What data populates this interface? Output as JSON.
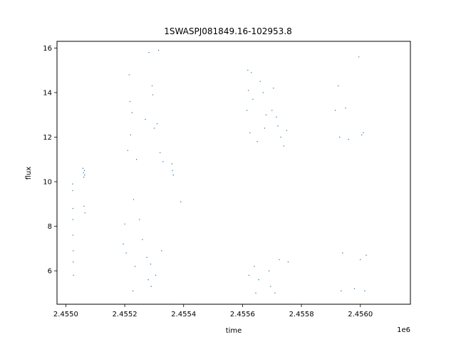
{
  "chart_data": {
    "type": "scatter",
    "title": "1SWASPJ081849.16-102953.8",
    "xlabel": "time",
    "ylabel": "flux",
    "x_offset_label": "1e6",
    "xlim": [
      2454870,
      2456070
    ],
    "ylim": [
      4.5,
      16.3
    ],
    "x_ticks": [
      {
        "value": 2454900,
        "label": "2.4550"
      },
      {
        "value": 2455100,
        "label": "2.4552"
      },
      {
        "value": 2455300,
        "label": "2.4554"
      },
      {
        "value": 2455500,
        "label": "2.4556"
      },
      {
        "value": 2455700,
        "label": "2.4558"
      },
      {
        "value": 2455900,
        "label": "2.4560"
      }
    ],
    "y_ticks": [
      {
        "value": 6,
        "label": "6"
      },
      {
        "value": 8,
        "label": "8"
      },
      {
        "value": 10,
        "label": "10"
      },
      {
        "value": 12,
        "label": "12"
      },
      {
        "value": 14,
        "label": "14"
      },
      {
        "value": 16,
        "label": "16"
      }
    ],
    "grid": false,
    "marker_color": "#1f77b4",
    "series": [
      {
        "points": [
          [
            2454923,
            9.9
          ],
          [
            2454923,
            9.6
          ],
          [
            2454924,
            8.8
          ],
          [
            2454924,
            8.3
          ],
          [
            2454925,
            6.9
          ],
          [
            2454925,
            6.4
          ],
          [
            2454926,
            5.8
          ],
          [
            2454924,
            7.6
          ],
          [
            2454958,
            10.6
          ],
          [
            2454960,
            10.4
          ],
          [
            2454961,
            10.2
          ],
          [
            2454963,
            10.5
          ],
          [
            2454962,
            8.9
          ],
          [
            2454965,
            8.6
          ],
          [
            2454964,
            10.3
          ],
          [
            2455095,
            7.2
          ],
          [
            2455100,
            8.1
          ],
          [
            2455105,
            6.8
          ],
          [
            2455110,
            11.4
          ],
          [
            2455115,
            14.8
          ],
          [
            2455118,
            13.6
          ],
          [
            2455120,
            12.1
          ],
          [
            2455125,
            13.1
          ],
          [
            2455128,
            5.1
          ],
          [
            2455130,
            9.2
          ],
          [
            2455135,
            6.2
          ],
          [
            2455140,
            11.0
          ],
          [
            2455150,
            8.3
          ],
          [
            2455160,
            7.4
          ],
          [
            2455170,
            12.8
          ],
          [
            2455175,
            6.6
          ],
          [
            2455180,
            5.6
          ],
          [
            2455182,
            15.8
          ],
          [
            2455188,
            6.3
          ],
          [
            2455190,
            5.3
          ],
          [
            2455193,
            14.3
          ],
          [
            2455195,
            13.9
          ],
          [
            2455200,
            12.4
          ],
          [
            2455205,
            5.8
          ],
          [
            2455210,
            12.6
          ],
          [
            2455215,
            15.9
          ],
          [
            2455220,
            11.3
          ],
          [
            2455225,
            6.9
          ],
          [
            2455230,
            10.9
          ],
          [
            2455260,
            10.8
          ],
          [
            2455262,
            10.5
          ],
          [
            2455265,
            10.3
          ],
          [
            2455290,
            9.1
          ],
          [
            2455515,
            13.2
          ],
          [
            2455518,
            15.0
          ],
          [
            2455520,
            14.1
          ],
          [
            2455522,
            5.8
          ],
          [
            2455525,
            12.2
          ],
          [
            2455530,
            14.9
          ],
          [
            2455535,
            13.7
          ],
          [
            2455540,
            6.2
          ],
          [
            2455545,
            5.0
          ],
          [
            2455550,
            11.8
          ],
          [
            2455555,
            5.6
          ],
          [
            2455560,
            14.5
          ],
          [
            2455570,
            14.0
          ],
          [
            2455575,
            12.4
          ],
          [
            2455580,
            13.0
          ],
          [
            2455590,
            6.0
          ],
          [
            2455595,
            5.3
          ],
          [
            2455600,
            13.2
          ],
          [
            2455605,
            14.2
          ],
          [
            2455610,
            5.0
          ],
          [
            2455615,
            12.9
          ],
          [
            2455620,
            12.5
          ],
          [
            2455625,
            6.5
          ],
          [
            2455630,
            12.0
          ],
          [
            2455640,
            11.6
          ],
          [
            2455650,
            12.3
          ],
          [
            2455655,
            6.4
          ],
          [
            2455815,
            13.2
          ],
          [
            2455825,
            14.3
          ],
          [
            2455830,
            12.0
          ],
          [
            2455835,
            5.1
          ],
          [
            2455840,
            6.8
          ],
          [
            2455850,
            13.3
          ],
          [
            2455860,
            11.9
          ],
          [
            2455880,
            5.2
          ],
          [
            2455895,
            15.6
          ],
          [
            2455900,
            6.5
          ],
          [
            2455905,
            12.1
          ],
          [
            2455910,
            12.2
          ],
          [
            2455915,
            5.1
          ],
          [
            2455920,
            6.7
          ]
        ]
      }
    ]
  }
}
